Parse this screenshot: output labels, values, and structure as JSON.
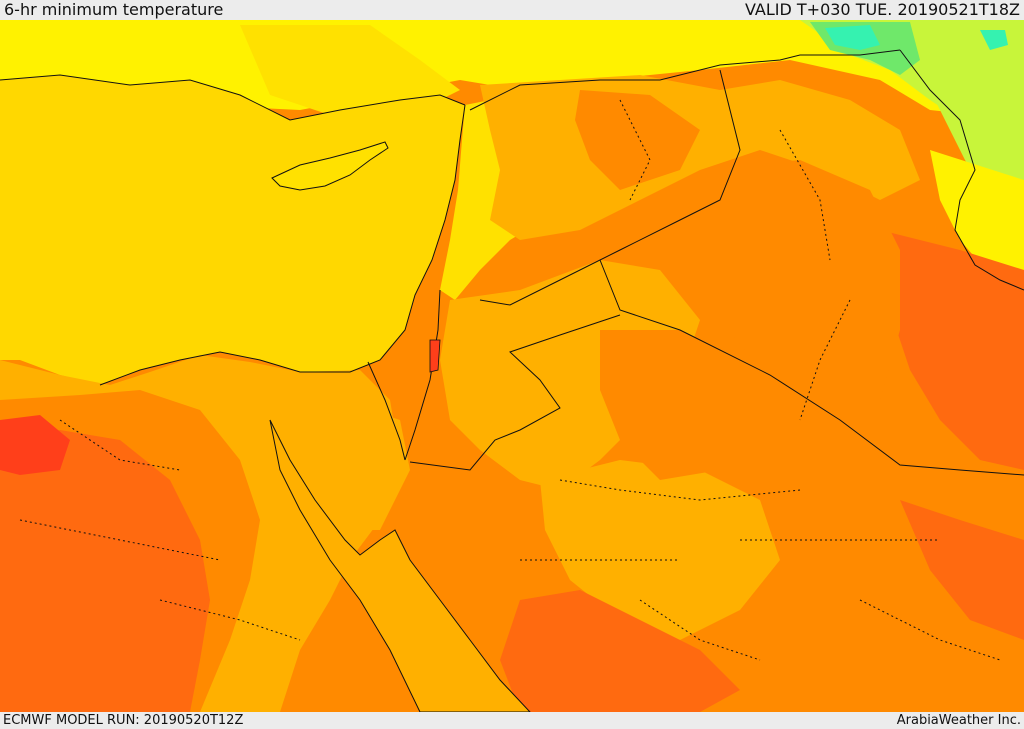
{
  "header": {
    "title": "6-hr minimum temperature",
    "valid": "VALID T+030 TUE. 20190521T18Z"
  },
  "footer": {
    "model_run": "ECMWF MODEL RUN: 20190520T12Z",
    "credit": "ArabiaWeather Inc."
  },
  "palette": {
    "sea": "#ffd800",
    "yellow_light": "#fff200",
    "yellow": "#ffe100",
    "amber": "#ffb000",
    "orange": "#ff8a00",
    "orange_red": "#ff6a10",
    "red": "#ff3f1a",
    "lime": "#c8f53a",
    "green": "#6fe86a",
    "cyan": "#35f2b0",
    "border": "#111111"
  }
}
